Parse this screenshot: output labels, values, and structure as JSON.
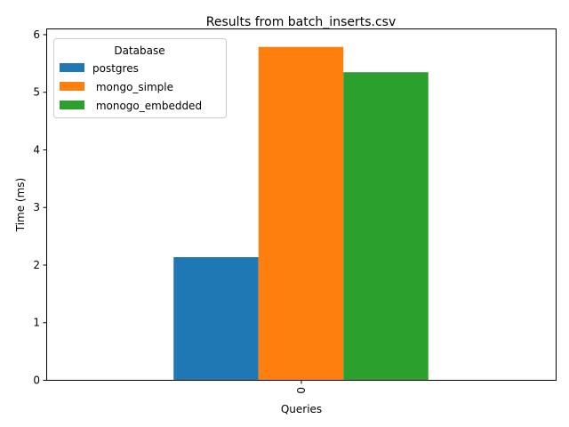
{
  "chart_data": {
    "type": "bar",
    "title": "Results from batch_inserts.csv",
    "xlabel": "Queries",
    "ylabel": "Time (ms)",
    "categories": [
      "0"
    ],
    "ylim": [
      0,
      6.1
    ],
    "yticks": [
      0,
      1,
      2,
      3,
      4,
      5,
      6
    ],
    "grid": false,
    "legend": {
      "title": "Database",
      "placement": "top-left"
    },
    "series": [
      {
        "name": "postgres",
        "values": [
          2.13
        ],
        "color": "#1f77b4"
      },
      {
        "name": " mongo_simple",
        "values": [
          5.78
        ],
        "color": "#ff7f0e"
      },
      {
        "name": " monogo_embedded",
        "values": [
          5.34
        ],
        "color": "#2ca02c"
      }
    ]
  }
}
